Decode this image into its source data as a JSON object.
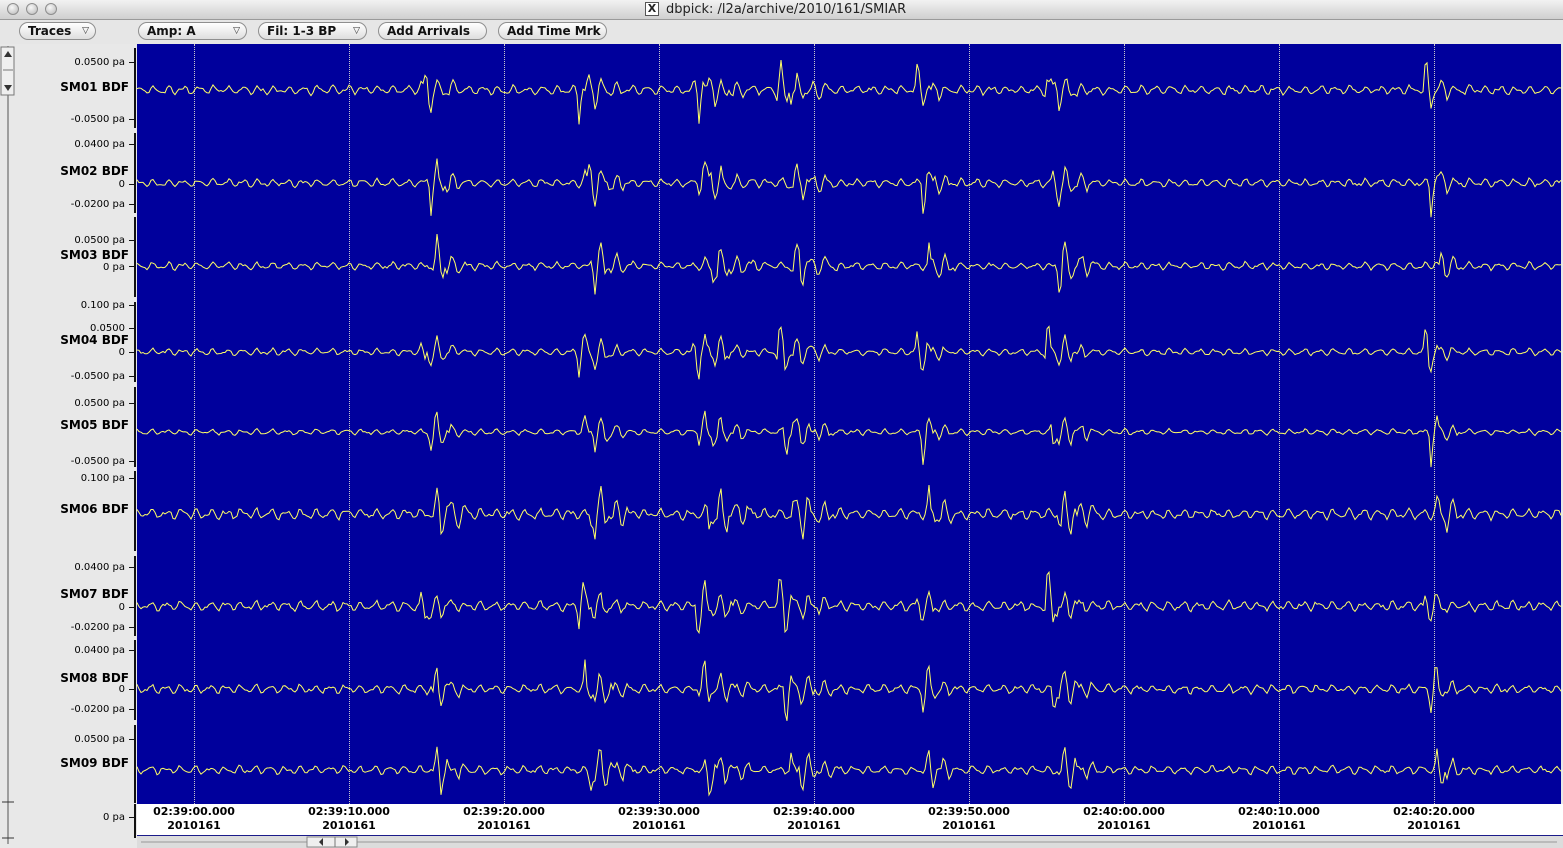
{
  "window": {
    "title": "dbpick: /l2a/archive/2010/161/SMIAR"
  },
  "toolbar": {
    "traces_label": "Traces",
    "amp_label": "Amp: A",
    "filter_label": "Fil: 1-3 BP",
    "add_arrivals_label": "Add Arrivals",
    "add_time_mark_label": "Add Time Mrk"
  },
  "colors": {
    "plot_bg": "#00009c",
    "trace": "#ffff66",
    "grid": "#c8c8c8"
  },
  "icons": {
    "window_controls": [
      "close-icon",
      "minimize-icon",
      "zoom-icon"
    ],
    "app_icon": "x11-icon",
    "menu_arrow": "triangle-down-icon"
  },
  "traces": [
    {
      "station": "SM01 BDF",
      "top_label": "0.0500 pa",
      "mid_label": "",
      "bottom_label": "-0.0500 pa"
    },
    {
      "station": "SM02 BDF",
      "top_label": "0.0400 pa",
      "mid_label": "0",
      "bottom_label": "-0.0200 pa"
    },
    {
      "station": "SM03 BDF",
      "top_label": "0.0500 pa",
      "mid_label": "0 pa",
      "bottom_label": ""
    },
    {
      "station": "SM04 BDF",
      "top_label": "0.100 pa",
      "mid_label": "0",
      "bottom_label": "-0.0500 pa",
      "extra_label": "0.0500"
    },
    {
      "station": "SM05 BDF",
      "top_label": "0.0500 pa",
      "mid_label": "",
      "bottom_label": "-0.0500 pa"
    },
    {
      "station": "SM06 BDF",
      "top_label": "0.100 pa",
      "mid_label": "",
      "bottom_label": ""
    },
    {
      "station": "SM07 BDF",
      "top_label": "0.0400 pa",
      "mid_label": "0",
      "bottom_label": "-0.0200 pa"
    },
    {
      "station": "SM08 BDF",
      "top_label": "0.0400 pa",
      "mid_label": "0",
      "bottom_label": "-0.0200 pa"
    },
    {
      "station": "SM09 BDF",
      "top_label": "0.0500 pa",
      "mid_label": "",
      "bottom_label": ""
    }
  ],
  "bottom_axis_label": "0 pa",
  "time_axis": [
    {
      "time": "02:39:00.000",
      "date": "2010161"
    },
    {
      "time": "02:39:10.000",
      "date": "2010161"
    },
    {
      "time": "02:39:20.000",
      "date": "2010161"
    },
    {
      "time": "02:39:30.000",
      "date": "2010161"
    },
    {
      "time": "02:39:40.000",
      "date": "2010161"
    },
    {
      "time": "02:39:50.000",
      "date": "2010161"
    },
    {
      "time": "02:40:00.000",
      "date": "2010161"
    },
    {
      "time": "02:40:10.000",
      "date": "2010161"
    },
    {
      "time": "02:40:20.000",
      "date": "2010161"
    }
  ]
}
